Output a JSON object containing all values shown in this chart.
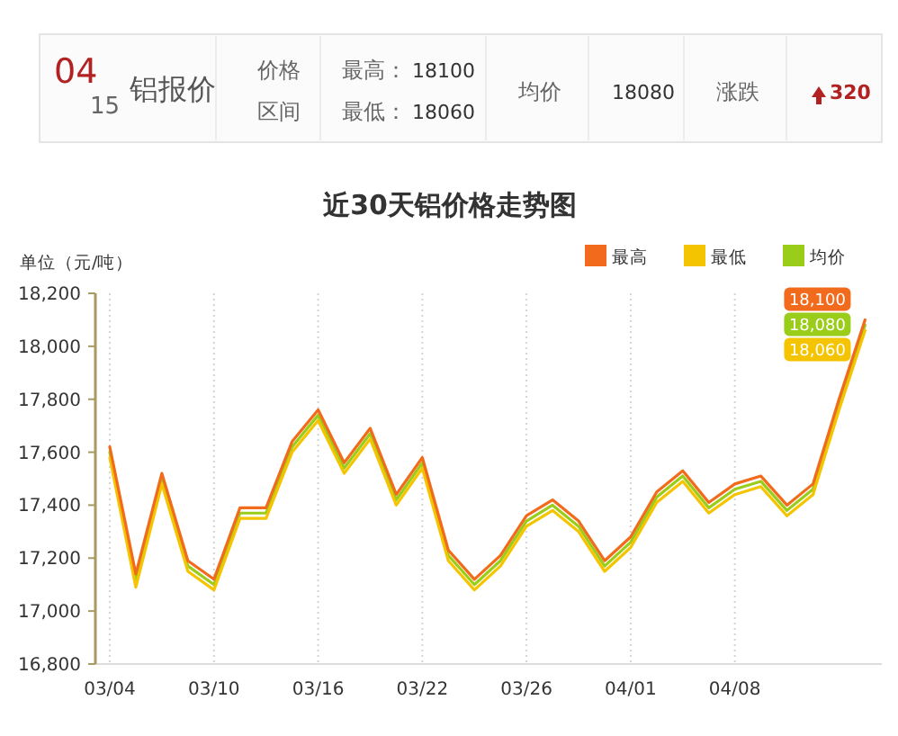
{
  "chart_data": [
    {
      "type": "other",
      "annotations": [
        "04",
        "15",
        "铝报价",
        "价格",
        "区间",
        "最高：",
        "18100",
        "最低：",
        "18060",
        "均价",
        "18080",
        "涨跌",
        "320"
      ]
    },
    {
      "type": "line",
      "title": "近30天铝价格走势图",
      "ylabel": "单位（元/吨）",
      "categories": [
        "03/04",
        null,
        null,
        null,
        "03/10",
        null,
        null,
        null,
        "03/16",
        null,
        null,
        null,
        "03/22",
        null,
        null,
        null,
        "03/26",
        null,
        null,
        null,
        "04/01",
        null,
        null,
        null,
        "04/08",
        null,
        null,
        null,
        null,
        null
      ],
      "series": [
        {
          "name": "最高",
          "color": "#f26b1d",
          "values": [
            17620,
            17140,
            17520,
            17190,
            17120,
            17390,
            17390,
            17640,
            17760,
            17560,
            17690,
            17440,
            17580,
            17230,
            17120,
            17210,
            17360,
            17420,
            17340,
            17190,
            17280,
            17450,
            17530,
            17410,
            17480,
            17510,
            17400,
            17480,
            17800,
            18100
          ],
          "value_labels": [
            null,
            null,
            null,
            null,
            null,
            null,
            null,
            null,
            null,
            null,
            null,
            null,
            null,
            null,
            null,
            null,
            null,
            null,
            null,
            null,
            null,
            null,
            null,
            null,
            null,
            null,
            null,
            null,
            null,
            "18,100"
          ]
        },
        {
          "name": "最低",
          "color": "#f5c400",
          "values": [
            17580,
            17090,
            17480,
            17150,
            17080,
            17350,
            17350,
            17600,
            17720,
            17520,
            17650,
            17400,
            17540,
            17190,
            17080,
            17170,
            17320,
            17380,
            17300,
            17150,
            17240,
            17410,
            17490,
            17370,
            17440,
            17470,
            17360,
            17440,
            17760,
            18060
          ],
          "value_labels": [
            null,
            null,
            null,
            null,
            null,
            null,
            null,
            null,
            null,
            null,
            null,
            null,
            null,
            null,
            null,
            null,
            null,
            null,
            null,
            null,
            null,
            null,
            null,
            null,
            null,
            null,
            null,
            null,
            null,
            "18,060"
          ]
        },
        {
          "name": "均价",
          "color": "#9acd1a",
          "values": [
            17600,
            17120,
            17500,
            17170,
            17100,
            17370,
            17370,
            17620,
            17740,
            17540,
            17670,
            17420,
            17560,
            17210,
            17100,
            17190,
            17340,
            17400,
            17320,
            17170,
            17260,
            17430,
            17510,
            17390,
            17460,
            17490,
            17380,
            17460,
            17780,
            18080
          ],
          "value_labels": [
            null,
            null,
            null,
            null,
            null,
            null,
            null,
            null,
            null,
            null,
            null,
            null,
            null,
            null,
            null,
            null,
            null,
            null,
            null,
            null,
            null,
            null,
            null,
            null,
            null,
            null,
            null,
            null,
            null,
            "18,080"
          ]
        }
      ],
      "ylim": [
        16800,
        18200
      ],
      "yticks": [
        {
          "value": 16800,
          "label": "16,800"
        },
        {
          "value": 17000,
          "label": "17,000"
        },
        {
          "value": 17200,
          "label": "17,200"
        },
        {
          "value": 17400,
          "label": "17,400"
        },
        {
          "value": 17600,
          "label": "17,600"
        },
        {
          "value": 17800,
          "label": "17,800"
        },
        {
          "value": 18000,
          "label": "18,000"
        },
        {
          "value": 18200,
          "label": "18,200"
        }
      ],
      "grid": "x",
      "legend": "top right",
      "marker": "none",
      "line_style": "solid"
    }
  ]
}
